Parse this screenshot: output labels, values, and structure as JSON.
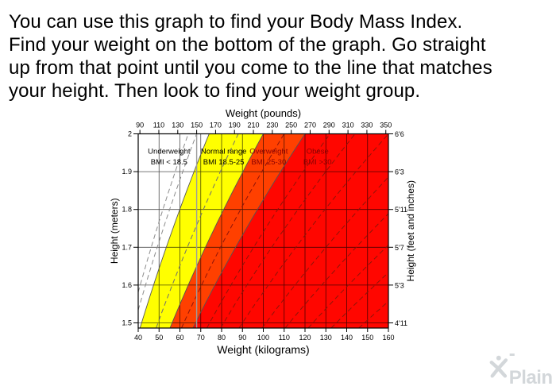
{
  "intro": {
    "lines": [
      "You can use this graph to find your Body Mass Index.",
      "Find your weight on the bottom of the graph. Go straight",
      "up from that point until you come to the line that matches",
      "your height. Then look to find your weight group."
    ]
  },
  "chart_data": {
    "type": "area",
    "title_top": "Weight (pounds)",
    "xlabel_bottom": "Weight (kilograms)",
    "ylabel_left": "Height (meters)",
    "ylabel_right": "Height (feet and inches)",
    "x_axis_kg": {
      "min": 40,
      "max": 160,
      "ticks": [
        40,
        50,
        60,
        70,
        80,
        90,
        100,
        110,
        120,
        130,
        140,
        150,
        160
      ]
    },
    "x_axis_lb": {
      "ticks": [
        90,
        110,
        130,
        150,
        170,
        190,
        210,
        230,
        250,
        270,
        290,
        310,
        330,
        350
      ]
    },
    "y_axis": {
      "min_m": 1.487,
      "max_m": 2.0,
      "ticks": [
        {
          "m": 2.0,
          "label": "2",
          "ft_label": "6'6"
        },
        {
          "m": 1.9,
          "label": "1.9",
          "ft_label": "6'3"
        },
        {
          "m": 1.8,
          "label": "1.8",
          "ft_label": "5'11"
        },
        {
          "m": 1.7,
          "label": "1.7",
          "ft_label": "5'7"
        },
        {
          "m": 1.6,
          "label": "1.6",
          "ft_label": "5'3"
        },
        {
          "m": 1.5,
          "label": "1.5",
          "ft_label": "4'11"
        }
      ]
    },
    "grid": true,
    "boundary_bmi": [
      18.5,
      25,
      30
    ],
    "regions": [
      {
        "name": "underweight",
        "line1": "Underweight",
        "line2": "BMI < 18.5",
        "bmi_range": [
          null,
          18.5
        ],
        "fill": "#ffffff",
        "text_color": "#000000",
        "label_kg": 54.8,
        "label_m": 1.948
      },
      {
        "name": "normal",
        "line1": "Normal range",
        "line2": "BMI 18.5-25",
        "bmi_range": [
          18.5,
          25
        ],
        "fill": "#ffff00",
        "text_color": "#000000",
        "label_kg": 81.0,
        "label_m": 1.948
      },
      {
        "name": "overweight",
        "line1": "Overweight",
        "line2": "BMI 25-30",
        "bmi_range": [
          25,
          30
        ],
        "fill": "#ff4000",
        "text_color": "#8b0000",
        "label_kg": 102.6,
        "label_m": 1.948
      },
      {
        "name": "obese",
        "line1": "Obese",
        "line2": "BMI >30",
        "bmi_range": [
          30,
          null
        ],
        "fill": "#ff0600",
        "text_color": "#8b0000",
        "label_kg": 126.0,
        "label_m": 1.948
      }
    ],
    "dashed_bmi_lines": [
      {
        "bmi": 16,
        "color": "#8c8c8c"
      },
      {
        "bmi": 17,
        "color": "#8c8c8c"
      },
      {
        "bmi": 22,
        "color": "#6f6f6f"
      },
      {
        "bmi": 27.5,
        "color": "#8f1408"
      },
      {
        "bmi": 33,
        "color": "#8f1408"
      },
      {
        "bmi": 36,
        "color": "#8f1408"
      },
      {
        "bmi": 40,
        "color": "#8f1408"
      },
      {
        "bmi": 45,
        "color": "#8f1408"
      },
      {
        "bmi": 50,
        "color": "#8f1408"
      },
      {
        "bmi": 55,
        "color": "#8f1408"
      },
      {
        "bmi": 60,
        "color": "#8f1408"
      },
      {
        "bmi": 66,
        "color": "#8f1408"
      }
    ],
    "reference_line": {
      "lb": 150,
      "color": "#9c9c9c"
    },
    "colors": {
      "grid": "#000000",
      "border": "#000000",
      "boundary_stroke": "#555555"
    }
  },
  "watermark": {
    "text": "-Plain"
  }
}
